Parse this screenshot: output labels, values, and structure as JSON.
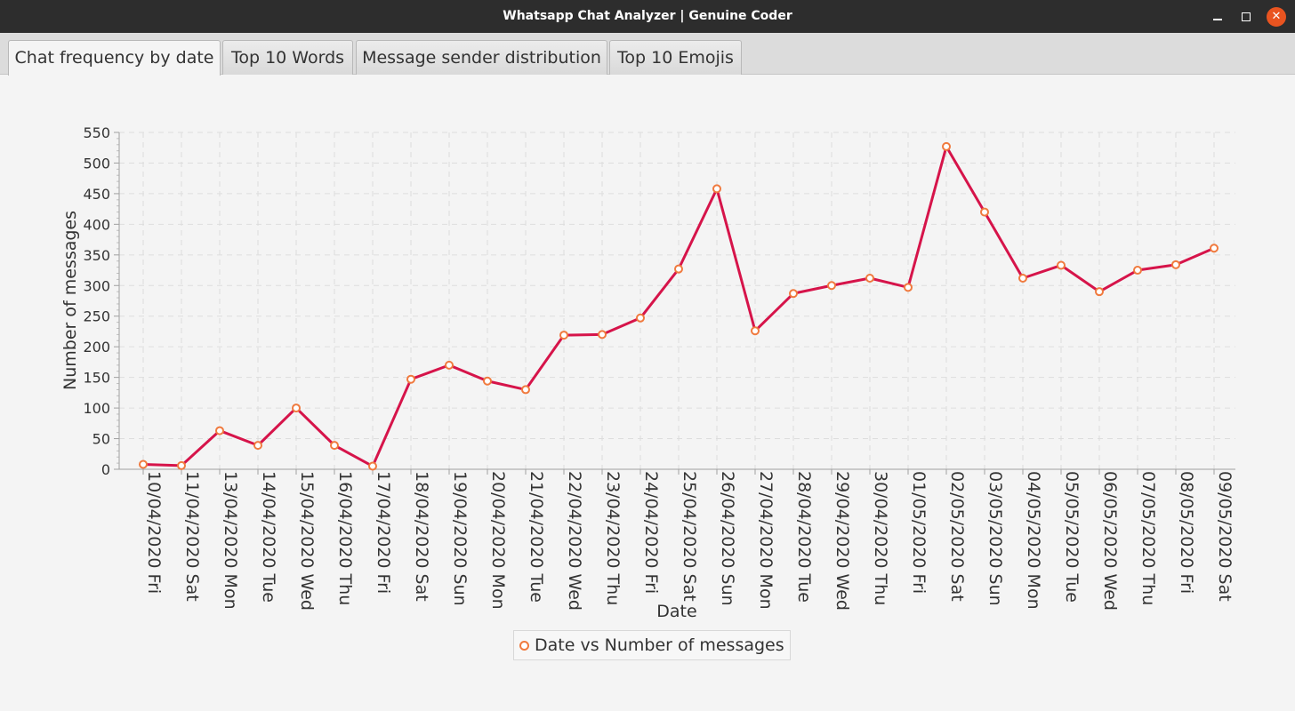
{
  "window": {
    "title": "Whatsapp Chat Analyzer | Genuine Coder"
  },
  "tabs": [
    {
      "label": "Chat frequency by date",
      "active": true
    },
    {
      "label": "Top 10 Words",
      "active": false
    },
    {
      "label": "Message sender distribution",
      "active": false
    },
    {
      "label": "Top 10 Emojis",
      "active": false
    }
  ],
  "colors": {
    "line": "#d6144a",
    "marker_stroke": "#f07a3e",
    "grid": "#dddddd",
    "close_button": "#e95420"
  },
  "chart_data": {
    "type": "line",
    "xlabel": "Date",
    "ylabel": "Number of messages",
    "ylim": [
      0,
      550
    ],
    "yticks": [
      0,
      50,
      100,
      150,
      200,
      250,
      300,
      350,
      400,
      450,
      500,
      550
    ],
    "grid": true,
    "legend_position": "bottom-center",
    "categories": [
      "10/04/2020 Fri",
      "11/04/2020 Sat",
      "13/04/2020 Mon",
      "14/04/2020 Tue",
      "15/04/2020 Wed",
      "16/04/2020 Thu",
      "17/04/2020 Fri",
      "18/04/2020 Sat",
      "19/04/2020 Sun",
      "20/04/2020 Mon",
      "21/04/2020 Tue",
      "22/04/2020 Wed",
      "23/04/2020 Thu",
      "24/04/2020 Fri",
      "25/04/2020 Sat",
      "26/04/2020 Sun",
      "27/04/2020 Mon",
      "28/04/2020 Tue",
      "29/04/2020 Wed",
      "30/04/2020 Thu",
      "01/05/2020 Fri",
      "02/05/2020 Sat",
      "03/05/2020 Sun",
      "04/05/2020 Mon",
      "05/05/2020 Tue",
      "06/05/2020 Wed",
      "07/05/2020 Thu",
      "08/05/2020 Fri",
      "09/05/2020 Sat"
    ],
    "series": [
      {
        "name": "Date vs Number of messages",
        "values": [
          8,
          6,
          63,
          39,
          100,
          39,
          5,
          147,
          170,
          144,
          130,
          219,
          220,
          247,
          327,
          458,
          226,
          287,
          300,
          312,
          297,
          527,
          420,
          312,
          333,
          290,
          325,
          334,
          361
        ]
      }
    ]
  }
}
